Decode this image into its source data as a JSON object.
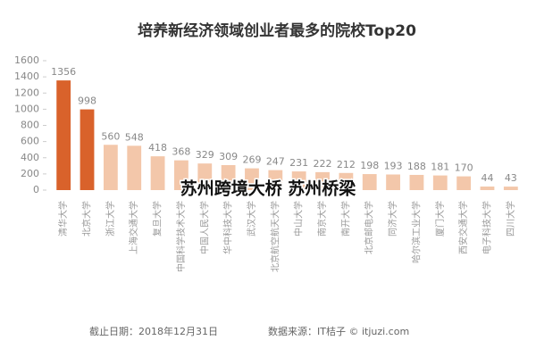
{
  "chart_data": {
    "type": "bar",
    "title": "培养新经济领域创业者最多的院校Top20",
    "categories": [
      "清华大学",
      "北京大学",
      "浙江大学",
      "上海交通大学",
      "复旦大学",
      "中国科学技术大学",
      "中国人民大学",
      "华中科技大学",
      "武汉大学",
      "北京航空航天大学",
      "中山大学",
      "南京大学",
      "南开大学",
      "北京邮电大学",
      "同济大学",
      "哈尔滨工业大学",
      "厦门大学",
      "西安交通大学",
      "电子科技大学",
      "四川大学"
    ],
    "values": [
      1356,
      998,
      560,
      548,
      418,
      368,
      329,
      309,
      269,
      247,
      231,
      222,
      212,
      198,
      193,
      188,
      181,
      170,
      44,
      43
    ],
    "colors": [
      "#d9622b",
      "#d9622b",
      "#f3c7aa",
      "#f3c7aa",
      "#f3c7aa",
      "#f3c7aa",
      "#f3c7aa",
      "#f3c7aa",
      "#f3c7aa",
      "#f3c7aa",
      "#f3c7aa",
      "#f3c7aa",
      "#f3c7aa",
      "#f3c7aa",
      "#f3c7aa",
      "#f3c7aa",
      "#f3c7aa",
      "#f3c7aa",
      "#f3c7aa",
      "#f3c7aa"
    ],
    "ylim": [
      0,
      1600
    ],
    "yticks": [
      0,
      200,
      400,
      600,
      800,
      1000,
      1200,
      1400,
      1600
    ],
    "footnote": "截止日期：2018年12月31日",
    "source": "数据来源：IT桔子 © itjuzi.com",
    "overlay_text": "苏州跨境大桥 苏州桥梁"
  }
}
